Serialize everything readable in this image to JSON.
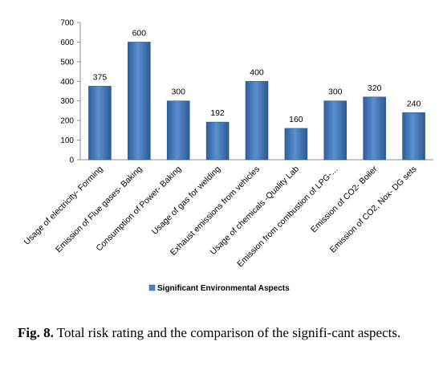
{
  "chart_data": {
    "type": "bar",
    "categories": [
      "Usage of electricity- Forming",
      "Emission of Flue gases- Baking",
      "Consumption of Power- Baking",
      "Usage of gas for welding",
      "Exhaust emissions from vehicles",
      "Usage of chemicals -Quality Lab",
      "Emission from combustion of LPG-…",
      "Emission of CO2- Boiler",
      "Emission of CO2, Nox- DG sets"
    ],
    "series": [
      {
        "name": "Significant Environmental Aspects",
        "values": [
          375,
          600,
          300,
          192,
          400,
          160,
          300,
          320,
          240
        ],
        "color": "#4f81bd"
      }
    ],
    "data_labels": [
      "375",
      "600",
      "300",
      "192",
      "400",
      "160",
      "300",
      "320",
      "240"
    ],
    "ylim": [
      0,
      700
    ],
    "y_ticks": [
      0,
      100,
      200,
      300,
      400,
      500,
      600,
      700
    ],
    "grid": false,
    "legend_position": "bottom",
    "xlabel": "",
    "ylabel": ""
  },
  "caption": {
    "label": "Fig. 8.",
    "text": " Total risk rating and the comparison of the signifi-cant aspects."
  }
}
